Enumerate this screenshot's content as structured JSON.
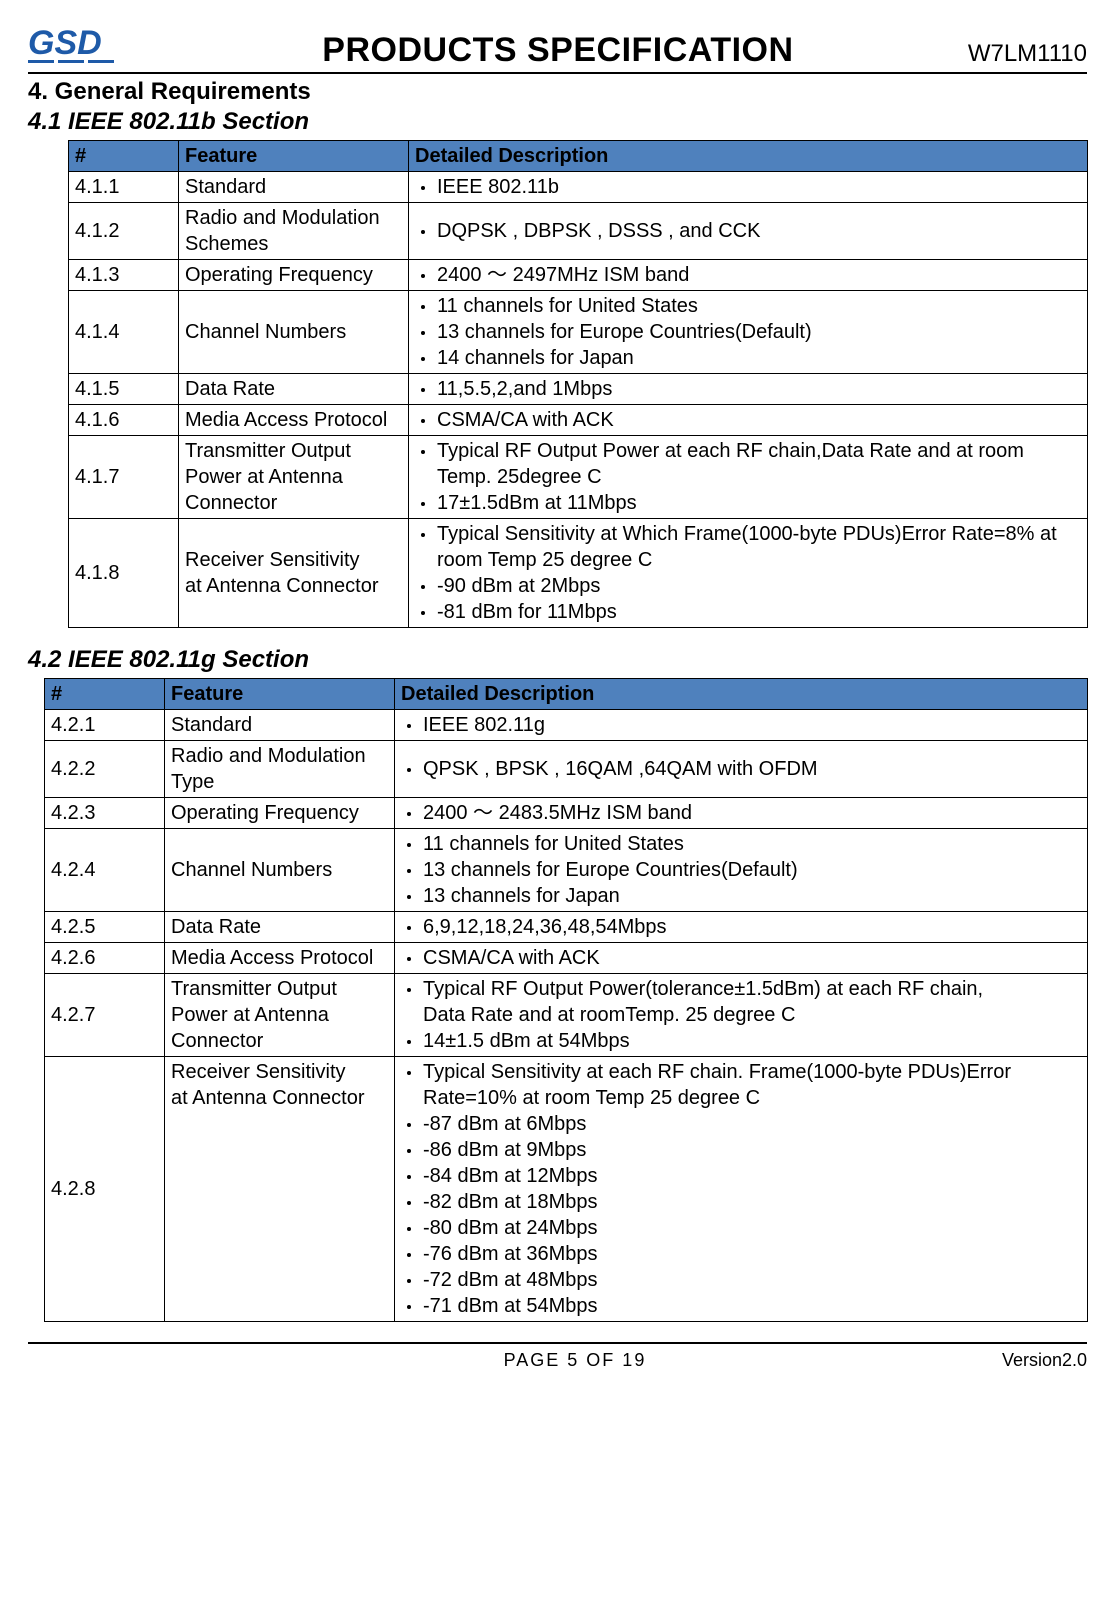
{
  "header": {
    "title": "PRODUCTS SPECIFICATION",
    "model": "W7LM1110",
    "logo_color": "#1e5aa8"
  },
  "section4": {
    "heading": "4.   General Requirements"
  },
  "section41": {
    "heading": "4.1   IEEE 802.11b Section",
    "columns": {
      "num": "#",
      "feature": "Feature",
      "desc": "Detailed Description"
    },
    "header_bg": "#4f81bd",
    "rows": [
      {
        "num": "4.1.1",
        "feature": "Standard",
        "desc": [
          "IEEE 802.11b"
        ]
      },
      {
        "num": "4.1.2",
        "feature": "Radio and Modulation Schemes",
        "desc": [
          "DQPSK , DBPSK , DSSS , and CCK"
        ]
      },
      {
        "num": "4.1.3",
        "feature": "Operating Frequency",
        "desc": [
          "2400  ～  2497MHz ISM band"
        ]
      },
      {
        "num": "4.1.4",
        "feature": "Channel Numbers",
        "desc": [
          "11 channels for United States",
          "13 channels for Europe Countries(Default)",
          "14 channels for Japan"
        ]
      },
      {
        "num": "4.1.5",
        "feature": "Data Rate",
        "desc": [
          "11,5.5,2,and 1Mbps"
        ]
      },
      {
        "num": "4.1.6",
        "feature": "Media Access Protocol",
        "desc": [
          "CSMA/CA with ACK"
        ]
      },
      {
        "num": "4.1.7",
        "feature": "Transmitter Output\nPower at Antenna Connector",
        "desc": [
          "Typical RF Output Power at each RF chain,Data Rate and at room Temp. 25degree C",
          " 17±1.5dBm at 11Mbps"
        ]
      },
      {
        "num": "4.1.8",
        "feature": "Receiver Sensitivity\nat Antenna Connector",
        "desc": [
          " Typical  Sensitivity  at  Which  Frame(1000-byte  PDUs)Error Rate=8% at room Temp 25 degree C",
          "-90 dBm at 2Mbps",
          "-81 dBm for 11Mbps"
        ]
      }
    ]
  },
  "section42": {
    "heading": "4.2    IEEE 802.11g Section",
    "columns": {
      "num": "#",
      "feature": "Feature",
      "desc": "Detailed Description"
    },
    "header_bg": "#4f81bd",
    "rows": [
      {
        "num": "4.2.1",
        "feature": "Standard",
        "desc": [
          "IEEE 802.11g"
        ]
      },
      {
        "num": "4.2.2",
        "feature": "Radio and Modulation Type",
        "desc": [
          "QPSK , BPSK , 16QAM ,64QAM with OFDM"
        ]
      },
      {
        "num": "4.2.3",
        "feature": "Operating Frequency",
        "desc": [
          "2400  ～  2483.5MHz ISM band"
        ]
      },
      {
        "num": "4.2.4",
        "feature": "Channel Numbers",
        "desc": [
          "11 channels for United States",
          "13 channels for Europe Countries(Default)",
          "13 channels for Japan"
        ]
      },
      {
        "num": "4.2.5",
        "feature": "Data Rate",
        "desc": [
          "6,9,12,18,24,36,48,54Mbps"
        ]
      },
      {
        "num": "4.2.6",
        "feature": "Media Access Protocol",
        "desc": [
          "CSMA/CA with ACK"
        ]
      },
      {
        "num": "4.2.7",
        "feature": "Transmitter Output\nPower at Antenna Connector",
        "desc": [
          "Typical RF Output Power(tolerance±1.5dBm) at each RF chain,\n   Data Rate and at roomTemp. 25 degree C",
          " 14±1.5 dBm at 54Mbps"
        ]
      },
      {
        "num": "4.2.8",
        "feature": "Receiver Sensitivity\nat Antenna Connector",
        "desc": [
          "      Typical  Sensitivity  at  each  RF  chain.  Frame(1000-byte PDUs)Error Rate=10% at room Temp 25 degree C",
          "-87 dBm at 6Mbps",
          "-86 dBm at 9Mbps",
          "-84 dBm at 12Mbps",
          "-82 dBm at 18Mbps",
          "-80 dBm at 24Mbps",
          "-76 dBm at 36Mbps",
          "-72 dBm at 48Mbps",
          "-71 dBm at 54Mbps"
        ]
      }
    ]
  },
  "footer": {
    "page_label": "PAGE   5   OF   19",
    "version": "Version2.0"
  }
}
